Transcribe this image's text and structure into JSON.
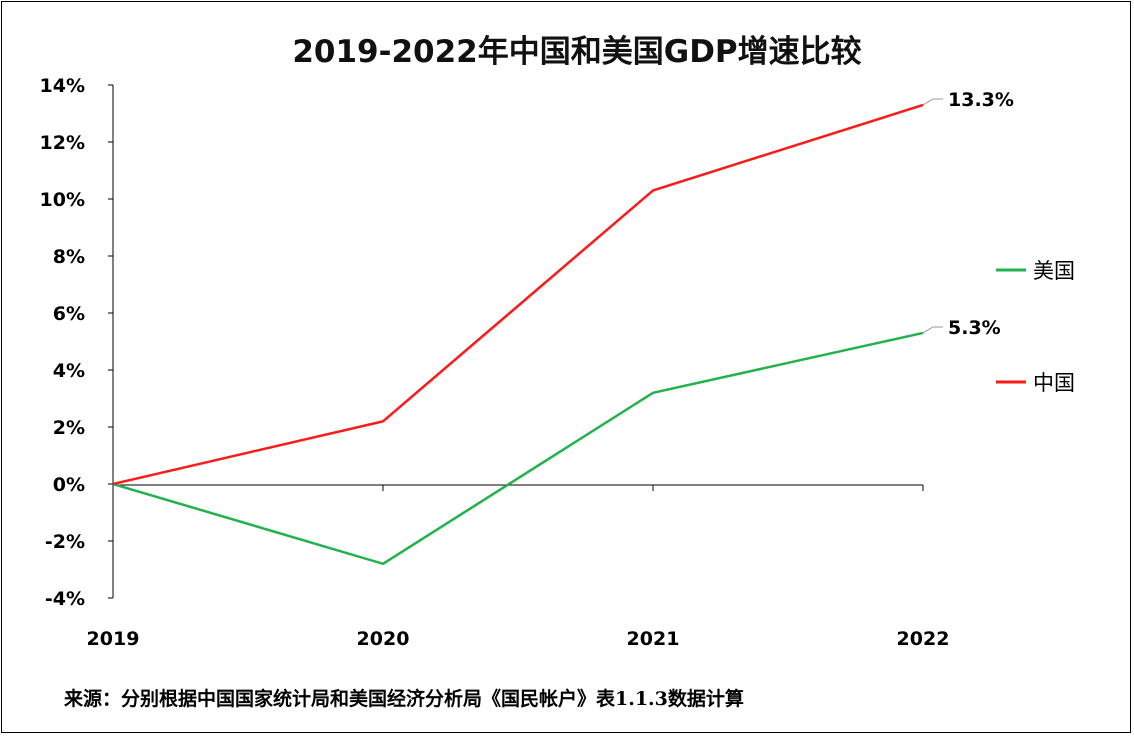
{
  "chart_data": {
    "type": "line",
    "title": "2019-2022年中国和美国GDP增速比较",
    "categories": [
      "2019",
      "2020",
      "2021",
      "2022"
    ],
    "ylim": [
      -4,
      14
    ],
    "y_ticks": [
      14,
      12,
      10,
      8,
      6,
      4,
      2,
      0,
      -2,
      -4
    ],
    "y_tick_labels": [
      "14%",
      "12%",
      "10%",
      "8%",
      "6%",
      "4%",
      "2%",
      "0%",
      "-2%",
      "-4%"
    ],
    "series": [
      {
        "name": "美国",
        "color": "#22b14c",
        "values": [
          0,
          -2.8,
          3.2,
          5.3
        ],
        "end_label": "5.3%"
      },
      {
        "name": "中国",
        "color": "#ff1a1a",
        "values": [
          0,
          2.2,
          10.3,
          13.3
        ],
        "end_label": "13.3%"
      }
    ],
    "legend_position": "right",
    "grid": false,
    "source": "来源：分别根据中国国家统计局和美国经济分析局《国民帐户》表1.1.3数据计算"
  }
}
